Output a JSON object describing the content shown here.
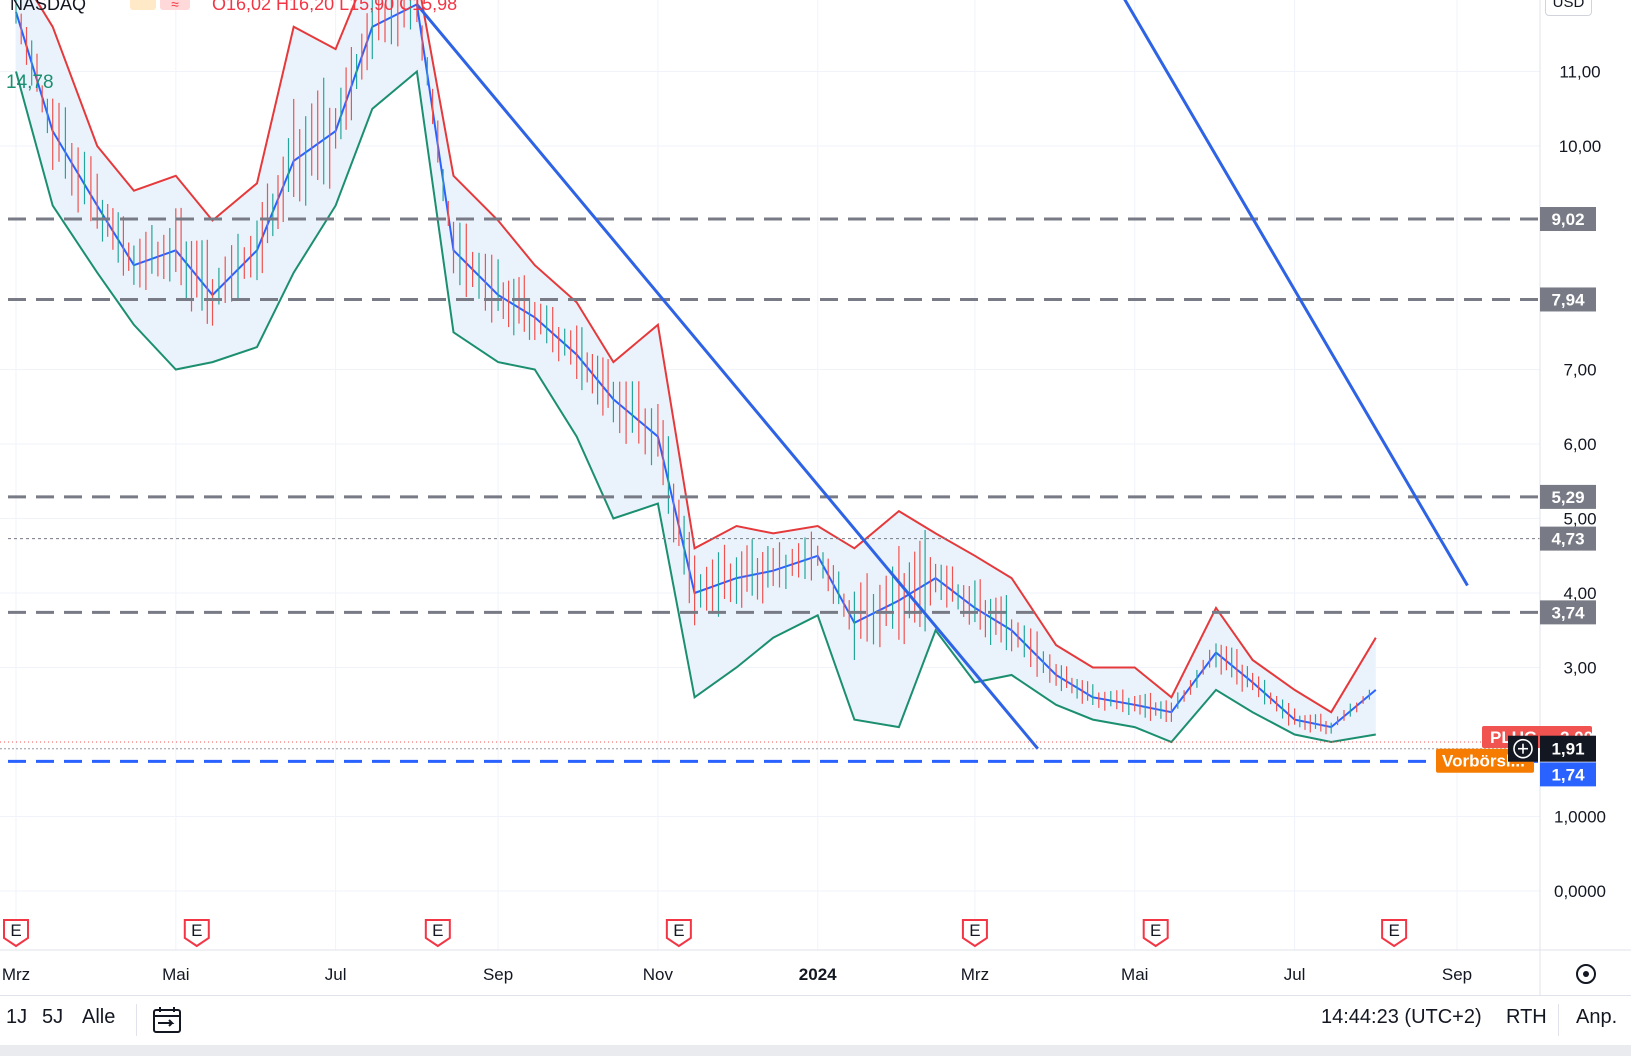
{
  "header": {
    "exchange": "NASDAQ",
    "ohlc": "O16,02 H16,20 L15,90 C15,98",
    "indicator_value": "14,78"
  },
  "colors": {
    "upper_band": "#e5393b",
    "lower_band": "#1b8f6f",
    "middle_band": "#2962ff",
    "band_fill": "#eaf3fb",
    "trendline": "#2e63e6",
    "level_dash": "#787b86",
    "support_dash": "#2962ff",
    "price_tag": "#131722",
    "premarket_tag": "#f57c00",
    "symbol_tag": "#f05350",
    "blue_tag": "#2962ff",
    "earnings": "#f23645"
  },
  "axis": {
    "currency": "USD",
    "price_ticks": [
      "11,00",
      "10,00",
      "7,00",
      "6,00",
      "5,00",
      "4,00",
      "3,00",
      "1,0000",
      "0,0000"
    ],
    "time_ticks": [
      "Mrz",
      "Mai",
      "Jul",
      "Sep",
      "Nov",
      "2024",
      "Mrz",
      "Mai",
      "Jul",
      "Sep"
    ]
  },
  "levels": [
    {
      "label": "9,02",
      "value": 9.02
    },
    {
      "label": "7,94",
      "value": 7.94
    },
    {
      "label": "5,29",
      "value": 5.29
    },
    {
      "label": "4,73",
      "value": 4.73
    },
    {
      "label": "3,74",
      "value": 3.74
    }
  ],
  "tags": {
    "current_price": "1,91",
    "support": "1,74",
    "premarket_label": "Vorbörsl...",
    "symbol_label": "PLUG",
    "symbol_value": "2,00"
  },
  "earnings_marker": "E",
  "bottom_bar": {
    "range_1y": "1J",
    "range_5y": "5J",
    "range_all": "Alle",
    "time": "14:44:23 (UTC+2)",
    "session": "RTH",
    "adjust": "Anp."
  },
  "chart_data": {
    "type": "line",
    "symbol": "PLUG",
    "exchange": "NASDAQ",
    "currency": "USD",
    "indicator": "Bollinger Bands",
    "ylim": [
      0,
      12
    ],
    "x": [
      "2023-03-01",
      "2023-03-15",
      "2023-04-01",
      "2023-04-15",
      "2023-05-01",
      "2023-05-15",
      "2023-06-01",
      "2023-06-15",
      "2023-07-01",
      "2023-07-15",
      "2023-08-01",
      "2023-08-15",
      "2023-09-01",
      "2023-09-15",
      "2023-10-01",
      "2023-10-15",
      "2023-11-01",
      "2023-11-15",
      "2023-12-01",
      "2023-12-15",
      "2024-01-01",
      "2024-01-15",
      "2024-02-01",
      "2024-02-15",
      "2024-03-01",
      "2024-03-15",
      "2024-04-01",
      "2024-04-15",
      "2024-05-01",
      "2024-05-15",
      "2024-06-01",
      "2024-06-15",
      "2024-07-01",
      "2024-07-15",
      "2024-08-01"
    ],
    "series": [
      {
        "name": "Upper",
        "values": [
          12.4,
          11.6,
          10.0,
          9.4,
          9.6,
          9.0,
          9.5,
          11.6,
          11.3,
          12.5,
          12.3,
          9.6,
          9.0,
          8.4,
          7.9,
          7.1,
          7.6,
          4.6,
          4.9,
          4.8,
          4.9,
          4.6,
          5.1,
          4.8,
          4.5,
          4.2,
          3.3,
          3.0,
          3.0,
          2.6,
          3.8,
          3.1,
          2.7,
          2.4,
          3.4
        ]
      },
      {
        "name": "Middle",
        "values": [
          11.8,
          10.2,
          9.2,
          8.4,
          8.6,
          8.0,
          8.6,
          9.8,
          10.2,
          11.6,
          11.9,
          8.6,
          8.0,
          7.7,
          7.2,
          6.6,
          6.1,
          4.0,
          4.2,
          4.3,
          4.5,
          3.6,
          3.9,
          4.2,
          3.8,
          3.5,
          2.9,
          2.6,
          2.5,
          2.4,
          3.2,
          2.8,
          2.3,
          2.2,
          2.7
        ]
      },
      {
        "name": "Lower",
        "values": [
          11.0,
          9.2,
          8.3,
          7.6,
          7.0,
          7.1,
          7.3,
          8.3,
          9.2,
          10.5,
          11.0,
          7.5,
          7.1,
          7.0,
          6.1,
          5.0,
          5.2,
          2.6,
          3.0,
          3.4,
          3.7,
          2.3,
          2.2,
          3.5,
          2.8,
          2.9,
          2.5,
          2.3,
          2.2,
          2.0,
          2.7,
          2.4,
          2.1,
          2.0,
          2.1
        ]
      }
    ],
    "horizontal_levels": [
      9.02,
      7.94,
      5.29,
      4.73,
      3.74,
      1.74
    ],
    "trendlines": [
      {
        "from": [
          "2023-08-01",
          11.9
        ],
        "to": [
          "2024-03-25",
          1.91
        ]
      },
      {
        "from": [
          "2024-04-05",
          13.3
        ],
        "to": [
          "2024-09-05",
          4.1
        ]
      }
    ],
    "last_price": 1.91,
    "xlabel": "",
    "ylabel": ""
  }
}
